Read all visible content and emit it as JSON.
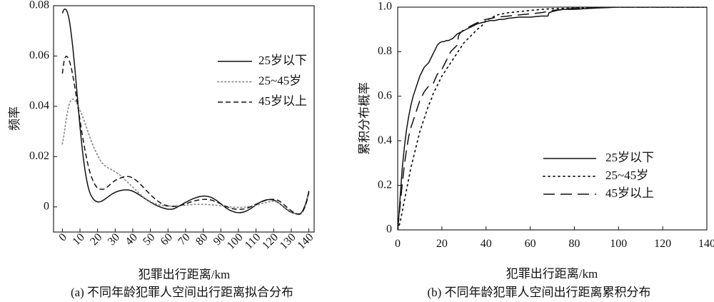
{
  "chart_data": [
    {
      "type": "line",
      "caption": "(a) 不同年龄犯罪人空间出行距离拟合分布",
      "xlabel": "犯罪出行距离/km",
      "ylabel": "频率",
      "xlim": [
        -5,
        143
      ],
      "ylim": [
        -0.01,
        0.08
      ],
      "xticks": [
        0,
        10,
        20,
        30,
        40,
        50,
        60,
        70,
        80,
        90,
        100,
        110,
        120,
        130,
        140
      ],
      "xtick_labels": [
        "0",
        "10",
        "20",
        "30",
        "40",
        "50",
        "60",
        "70",
        "80",
        "90",
        "100",
        "110",
        "120",
        "130",
        "140"
      ],
      "yticks": [
        0,
        0.02,
        0.04,
        0.06,
        0.08
      ],
      "ytick_labels": [
        "0",
        "0.02",
        "0.04",
        "0.06",
        "0.08"
      ],
      "grid": false,
      "legend": "right",
      "series": [
        {
          "name": "25岁以下",
          "color": "#111111",
          "dash": "solid",
          "x": [
            0,
            1,
            2,
            3,
            4,
            5,
            6,
            7,
            8,
            9,
            10,
            11,
            12,
            13,
            14,
            15,
            16,
            18,
            20,
            22,
            24,
            26,
            28,
            30,
            33,
            36,
            39,
            42,
            45,
            48,
            51,
            54,
            57,
            60,
            63,
            66,
            70,
            74,
            78,
            81,
            84,
            87,
            90,
            93,
            96,
            100,
            104,
            108,
            112,
            116,
            120,
            123,
            126,
            129,
            132,
            134.5,
            136.5,
            138.5,
            140
          ],
          "y": [
            0.077,
            0.0785,
            0.0785,
            0.077,
            0.074,
            0.069,
            0.063,
            0.056,
            0.048,
            0.04,
            0.032,
            0.025,
            0.019,
            0.014,
            0.01,
            0.007,
            0.005,
            0.0028,
            0.002,
            0.0022,
            0.003,
            0.004,
            0.005,
            0.0058,
            0.0065,
            0.0068,
            0.0065,
            0.0055,
            0.0042,
            0.0028,
            0.0015,
            0.0004,
            -0.0004,
            -0.0009,
            -0.0008,
            0.0002,
            0.0018,
            0.0032,
            0.0041,
            0.0043,
            0.0039,
            0.0028,
            0.0012,
            -0.0004,
            -0.0016,
            -0.0023,
            -0.0018,
            -0.0002,
            0.0017,
            0.0028,
            0.0027,
            0.0015,
            -0.0002,
            -0.0018,
            -0.0026,
            -0.003,
            -0.0015,
            0.002,
            0.0063
          ]
        },
        {
          "name": "25~45岁",
          "color": "#8a8a8a",
          "dash": "dotted",
          "x": [
            0,
            1,
            2,
            3,
            4,
            5,
            6,
            7,
            8,
            10,
            12,
            14,
            16,
            18,
            20,
            22,
            24,
            26,
            28,
            30,
            33,
            36,
            39,
            42,
            45,
            48,
            51,
            54,
            57,
            60,
            65,
            70,
            75,
            80,
            85,
            90,
            95,
            100,
            105,
            110,
            115,
            120,
            123,
            126,
            129,
            132,
            134.5,
            136.5,
            138.5,
            140
          ],
          "y": [
            0.025,
            0.029,
            0.034,
            0.038,
            0.041,
            0.0425,
            0.0428,
            0.0425,
            0.0415,
            0.0385,
            0.035,
            0.031,
            0.027,
            0.0235,
            0.0205,
            0.018,
            0.0165,
            0.0155,
            0.0148,
            0.014,
            0.0125,
            0.0105,
            0.0085,
            0.0065,
            0.0045,
            0.003,
            0.0018,
            0.001,
            0.0005,
            0.0003,
            0.0004,
            0.0007,
            0.001,
            0.001,
            0.0008,
            0.0004,
            0.0,
            -0.0002,
            0.0,
            0.0006,
            0.0016,
            0.0022,
            0.0015,
            0.0,
            -0.0015,
            -0.0025,
            -0.003,
            -0.002,
            0.0015,
            0.006
          ]
        },
        {
          "name": "45岁以上",
          "color": "#111111",
          "dash": "dashed",
          "x": [
            0,
            1,
            2,
            3,
            4,
            5,
            6,
            7,
            8,
            9,
            10,
            11,
            12,
            13,
            14,
            15,
            16,
            18,
            20,
            22,
            24,
            26,
            28,
            30,
            33,
            36,
            39,
            42,
            45,
            48,
            51,
            54,
            57,
            60,
            63,
            66,
            70,
            74,
            78,
            81,
            84,
            87,
            90,
            93,
            96,
            100,
            104,
            108,
            112,
            116,
            120,
            123,
            126,
            129,
            132,
            134.5,
            136.5,
            138.5,
            140
          ],
          "y": [
            0.053,
            0.058,
            0.0598,
            0.0595,
            0.058,
            0.0555,
            0.052,
            0.048,
            0.0435,
            0.039,
            0.0345,
            0.03,
            0.026,
            0.022,
            0.0185,
            0.0155,
            0.013,
            0.0095,
            0.0075,
            0.007,
            0.0072,
            0.0082,
            0.0094,
            0.0105,
            0.0115,
            0.0121,
            0.0118,
            0.0105,
            0.0085,
            0.0063,
            0.0042,
            0.0024,
            0.0011,
            0.0004,
            0.0002,
            0.0004,
            0.0012,
            0.0022,
            0.0028,
            0.003,
            0.0028,
            0.0021,
            0.0012,
            0.0002,
            -0.0006,
            -0.001,
            -0.0007,
            0.0004,
            0.0017,
            0.0027,
            0.003,
            0.0024,
            0.0008,
            -0.001,
            -0.0024,
            -0.0028,
            -0.0018,
            0.0015,
            0.006
          ]
        }
      ]
    },
    {
      "type": "line",
      "caption": "(b) 不同年龄犯罪人空间出行距离累积分布",
      "xlabel": "犯罪出行距离/km",
      "ylabel": "累积分布概率",
      "xlim": [
        0,
        140
      ],
      "ylim": [
        0,
        1
      ],
      "xticks": [
        0,
        20,
        40,
        60,
        80,
        100,
        120,
        140
      ],
      "xtick_labels": [
        "0",
        "20",
        "40",
        "60",
        "80",
        "100",
        "120",
        "140"
      ],
      "yticks": [
        0,
        0.2,
        0.4,
        0.6,
        0.8,
        1.0
      ],
      "ytick_labels": [
        "0",
        "0.2",
        "0.4",
        "0.6",
        "0.8",
        "1.0"
      ],
      "grid": false,
      "legend": "lower-right",
      "series": [
        {
          "name": "25岁以下",
          "color": "#111111",
          "dash": "solid",
          "x": [
            0,
            0.5,
            1,
            1.5,
            2,
            3,
            4,
            5,
            6,
            7,
            8,
            9,
            10,
            11,
            12,
            13,
            14,
            15,
            16,
            17,
            18,
            19,
            20,
            21,
            22,
            23,
            24,
            25,
            26,
            27,
            28,
            29,
            30,
            32,
            34,
            36,
            38,
            40,
            42,
            44,
            46,
            48,
            50,
            55,
            60,
            65,
            68,
            68.5,
            70,
            72,
            75,
            80,
            85,
            90,
            95,
            100,
            110,
            120,
            130,
            140
          ],
          "y": [
            0,
            0.06,
            0.13,
            0.2,
            0.27,
            0.37,
            0.45,
            0.51,
            0.56,
            0.6,
            0.63,
            0.66,
            0.69,
            0.71,
            0.73,
            0.74,
            0.75,
            0.77,
            0.79,
            0.81,
            0.83,
            0.84,
            0.845,
            0.845,
            0.85,
            0.85,
            0.855,
            0.86,
            0.87,
            0.88,
            0.885,
            0.89,
            0.895,
            0.905,
            0.915,
            0.925,
            0.93,
            0.935,
            0.94,
            0.94,
            0.945,
            0.945,
            0.95,
            0.955,
            0.955,
            0.96,
            0.96,
            0.975,
            0.98,
            0.985,
            0.99,
            0.99,
            0.993,
            0.996,
            0.998,
            1.0,
            1.0,
            1.0,
            1.0,
            1.0
          ]
        },
        {
          "name": "25~45岁",
          "color": "#111111",
          "dash": "dotted",
          "x": [
            0,
            1,
            2,
            3,
            4,
            5,
            6,
            7,
            8,
            9,
            10,
            11,
            12,
            13,
            14,
            15,
            16,
            17,
            18,
            19,
            20,
            22,
            24,
            26,
            28,
            30,
            32,
            34,
            36,
            38,
            40,
            42,
            45,
            50,
            55,
            60,
            65,
            70,
            80,
            90,
            100,
            120,
            140
          ],
          "y": [
            0,
            0.03,
            0.08,
            0.13,
            0.18,
            0.23,
            0.28,
            0.32,
            0.36,
            0.4,
            0.44,
            0.47,
            0.5,
            0.53,
            0.56,
            0.58,
            0.61,
            0.63,
            0.65,
            0.67,
            0.69,
            0.72,
            0.75,
            0.78,
            0.81,
            0.84,
            0.86,
            0.88,
            0.9,
            0.915,
            0.94,
            0.95,
            0.965,
            0.975,
            0.98,
            0.985,
            0.99,
            0.993,
            0.996,
            0.998,
            1.0,
            1.0,
            1.0
          ]
        },
        {
          "name": "45岁以上",
          "color": "#111111",
          "dash": "long-dashed",
          "x": [
            0,
            1,
            2,
            3,
            4,
            5,
            6,
            7,
            8,
            9,
            10,
            12,
            14,
            16,
            18,
            20,
            21,
            22,
            23,
            24,
            25,
            26,
            27,
            27.5,
            28,
            30,
            32,
            34,
            36,
            38,
            40,
            45,
            50,
            55,
            60,
            65,
            70,
            75,
            80,
            90,
            100,
            120,
            140
          ],
          "y": [
            0,
            0.1,
            0.2,
            0.29,
            0.36,
            0.42,
            0.46,
            0.49,
            0.52,
            0.55,
            0.58,
            0.62,
            0.645,
            0.655,
            0.7,
            0.72,
            0.74,
            0.76,
            0.78,
            0.8,
            0.81,
            0.82,
            0.83,
            0.87,
            0.88,
            0.9,
            0.91,
            0.92,
            0.93,
            0.94,
            0.945,
            0.955,
            0.96,
            0.965,
            0.97,
            0.975,
            0.985,
            0.99,
            0.995,
            0.998,
            1.0,
            1.0,
            1.0
          ]
        }
      ]
    }
  ]
}
